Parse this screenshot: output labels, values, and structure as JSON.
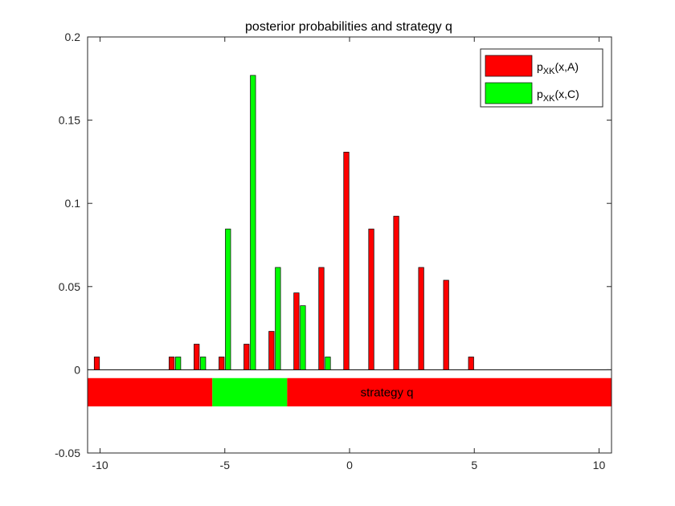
{
  "chart_data": {
    "type": "bar",
    "title": "posterior probabilities and strategy q",
    "xlabel": "",
    "ylabel": "",
    "xlim": [
      -10.5,
      10.5
    ],
    "ylim": [
      -0.05,
      0.2
    ],
    "x_ticks": [
      -10,
      -5,
      0,
      5,
      10
    ],
    "y_ticks": [
      -0.05,
      0,
      0.05,
      0.1,
      0.15,
      0.2
    ],
    "y_tick_labels": [
      "-0.05",
      "0",
      "0.05",
      "0.1",
      "0.15",
      "0.2"
    ],
    "grid": false,
    "legend_position": "top-right",
    "colors": {
      "A": "#ff0000",
      "C": "#00ff00"
    },
    "series": [
      {
        "key": "A",
        "legend": {
          "main": "p",
          "sub": "XK",
          "tail": "(x,A)"
        },
        "x": [
          -10,
          -7,
          -6,
          -5,
          -4,
          -3,
          -2,
          -1,
          0,
          1,
          2,
          3,
          4,
          5
        ],
        "values": [
          0.0077,
          0.0077,
          0.0154,
          0.0077,
          0.0154,
          0.0231,
          0.0462,
          0.0615,
          0.1308,
          0.0846,
          0.0923,
          0.0615,
          0.0538,
          0.0077
        ]
      },
      {
        "key": "C",
        "legend": {
          "main": "p",
          "sub": "XK",
          "tail": "(x,C)"
        },
        "x": [
          -7,
          -6,
          -5,
          -4,
          -3,
          -2,
          -1
        ],
        "values": [
          0.0077,
          0.0077,
          0.0846,
          0.1769,
          0.0615,
          0.0385,
          0.0077
        ]
      }
    ],
    "strategy": {
      "label": "strategy q",
      "y_range": [
        -0.022,
        -0.005
      ],
      "segments": [
        {
          "from": -10.5,
          "to": -5.5,
          "decision": "A"
        },
        {
          "from": -5.5,
          "to": -2.5,
          "decision": "C"
        },
        {
          "from": -2.5,
          "to": 10.5,
          "decision": "A"
        }
      ]
    }
  }
}
